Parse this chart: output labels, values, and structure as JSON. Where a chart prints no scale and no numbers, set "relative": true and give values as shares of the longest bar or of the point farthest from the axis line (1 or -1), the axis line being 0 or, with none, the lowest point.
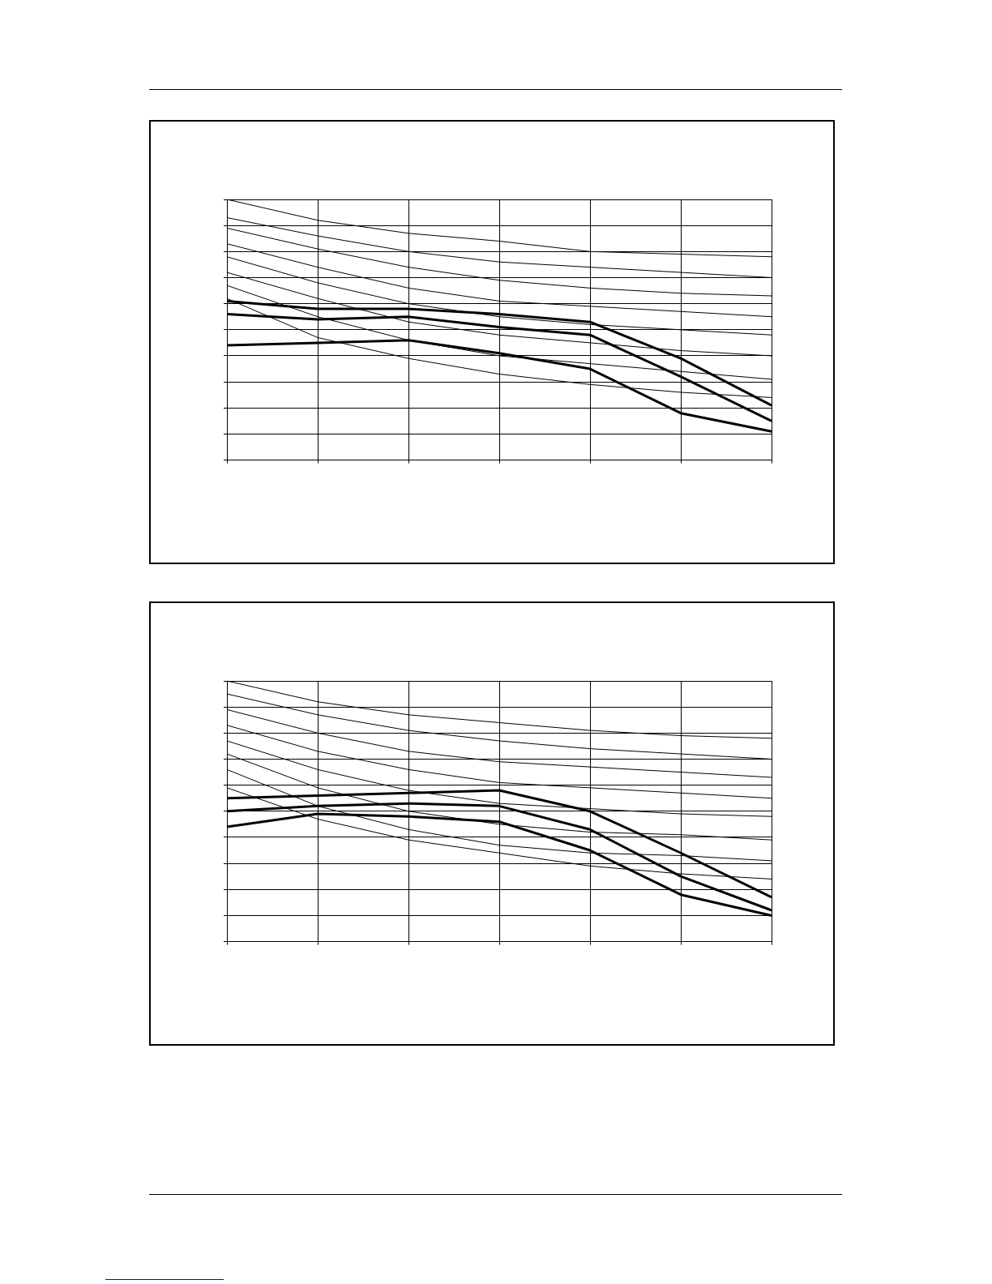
{
  "chart_data": [
    {
      "type": "line",
      "relative": true,
      "grid": true,
      "legend": false,
      "marker": "none",
      "line_style": "solid",
      "categories": [
        null,
        null,
        null,
        null,
        null,
        null,
        null
      ],
      "series": [
        {
          "color": "#000000",
          "values": [
            1,
            0.92,
            0.87,
            0.84,
            0.8,
            0.79,
            0.78
          ]
        },
        {
          "color": "#000000",
          "values": [
            0.93,
            0.86,
            0.8,
            0.76,
            0.74,
            0.72,
            0.7
          ]
        },
        {
          "color": "#000000",
          "values": [
            0.89,
            0.81,
            0.74,
            0.69,
            0.66,
            0.64,
            0.63
          ]
        },
        {
          "color": "#000000",
          "values": [
            0.83,
            0.74,
            0.66,
            0.61,
            0.59,
            0.57,
            0.55
          ]
        },
        {
          "color": "#000000",
          "values": [
            0.78,
            0.68,
            0.6,
            0.55,
            0.52,
            0.5,
            0.48
          ]
        },
        {
          "color": "#000000",
          "values": [
            0.72,
            0.62,
            0.53,
            0.48,
            0.45,
            0.42,
            0.4
          ]
        },
        {
          "color": "#000000",
          "values": [
            0.67,
            0.55,
            0.46,
            0.4,
            0.37,
            0.34,
            0.31
          ]
        },
        {
          "color": "#000000",
          "values": [
            0.62,
            0.47,
            0.39,
            0.33,
            0.29,
            0.26,
            0.24
          ]
        },
        {
          "color": "#000000",
          "values": [
            0.61,
            0.58,
            0.58,
            0.56,
            0.53,
            0.39,
            0.21
          ]
        },
        {
          "color": "#000000",
          "values": [
            0.56,
            0.54,
            0.55,
            0.51,
            0.48,
            0.32,
            0.15
          ]
        },
        {
          "color": "#000000",
          "values": [
            0.44,
            0.45,
            0.46,
            0.41,
            0.35,
            0.18,
            0.11
          ]
        }
      ]
    },
    {
      "type": "line",
      "relative": true,
      "grid": true,
      "legend": false,
      "marker": "none",
      "line_style": "solid",
      "categories": [
        null,
        null,
        null,
        null,
        null,
        null,
        null
      ],
      "series": [
        {
          "color": "#000000",
          "values": [
            1,
            0.92,
            0.87,
            0.84,
            0.81,
            0.79,
            0.78
          ]
        },
        {
          "color": "#000000",
          "values": [
            0.95,
            0.87,
            0.81,
            0.77,
            0.74,
            0.72,
            0.7
          ]
        },
        {
          "color": "#000000",
          "values": [
            0.89,
            0.8,
            0.73,
            0.69,
            0.67,
            0.65,
            0.63
          ]
        },
        {
          "color": "#000000",
          "values": [
            0.83,
            0.73,
            0.66,
            0.61,
            0.59,
            0.57,
            0.55
          ]
        },
        {
          "color": "#000000",
          "values": [
            0.77,
            0.66,
            0.58,
            0.53,
            0.51,
            0.49,
            0.48
          ]
        },
        {
          "color": "#000000",
          "values": [
            0.72,
            0.59,
            0.5,
            0.45,
            0.42,
            0.41,
            0.39
          ]
        },
        {
          "color": "#000000",
          "values": [
            0.66,
            0.52,
            0.43,
            0.37,
            0.34,
            0.33,
            0.31
          ]
        },
        {
          "color": "#000000",
          "values": [
            0.59,
            0.47,
            0.39,
            0.34,
            0.29,
            0.26,
            0.24
          ]
        },
        {
          "color": "#000000",
          "values": [
            0.55,
            0.56,
            0.57,
            0.58,
            0.5,
            0.34,
            0.17
          ]
        },
        {
          "color": "#000000",
          "values": [
            0.5,
            0.52,
            0.53,
            0.52,
            0.43,
            0.25,
            0.12
          ]
        },
        {
          "color": "#000000",
          "values": [
            0.44,
            0.49,
            0.48,
            0.46,
            0.35,
            0.18,
            0.1
          ]
        }
      ]
    }
  ]
}
